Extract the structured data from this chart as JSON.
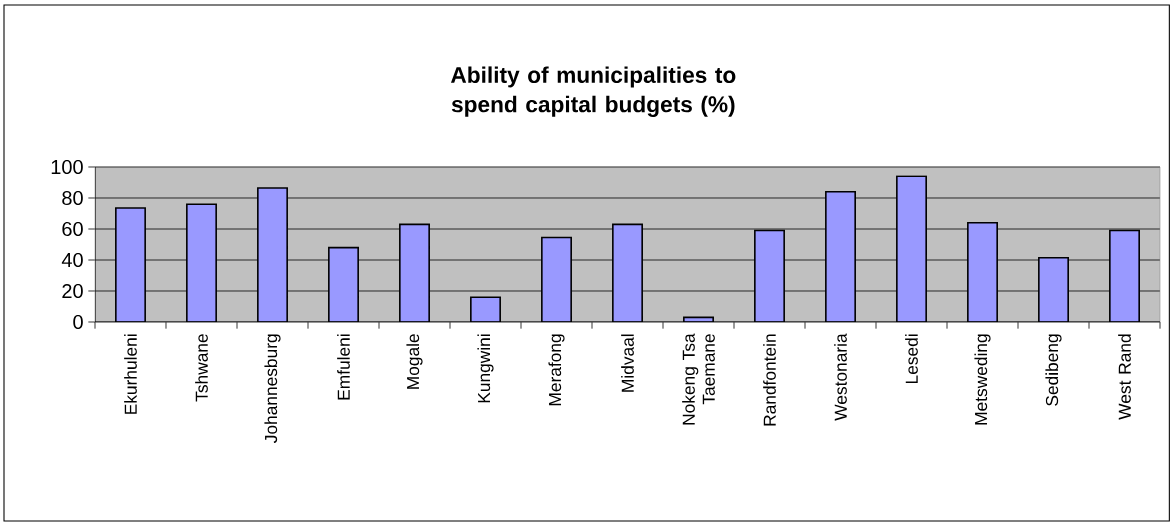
{
  "chart_data": {
    "type": "bar",
    "title": "Ability of municipalities to spend capital budgets (%)",
    "categories": [
      "Ekurhuleni",
      "Tshwane",
      "Johannesburg",
      "Emfuleni",
      "Mogale",
      "Kungwini",
      "Merafong",
      "Midvaal",
      "Nokeng Tsa Taemane",
      "Randfontein",
      "Westonaria",
      "Lesedi",
      "Metsweding",
      "Sedibeng",
      "West Rand"
    ],
    "values": [
      73.5,
      76,
      86.5,
      48,
      63,
      16,
      54.5,
      63,
      3,
      59,
      84,
      94,
      64,
      41.5,
      59
    ],
    "color": "#9999ff",
    "ylim": [
      0,
      100
    ],
    "yticks": [
      0,
      20,
      40,
      60,
      80,
      100
    ],
    "grid": "y"
  }
}
